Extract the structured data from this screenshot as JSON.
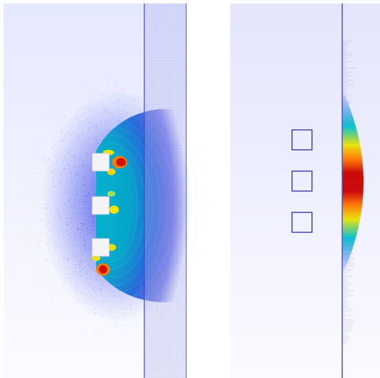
{
  "panels": [
    {
      "name": "particle-field-view",
      "description_colors": {
        "background": "#eef0ff",
        "hot": "#c00000",
        "cool": "#1a2bd0"
      },
      "obstacles": 3,
      "obstacle_color": "#f4f4f8",
      "boundary_color": "#3a3ad0"
    },
    {
      "name": "profile-view",
      "obstacles": 3,
      "obstacle_color": "#4a4ab8",
      "boundary_color": "#5555cc",
      "profile_colors": [
        "#1a2bd0",
        "#00c8c8",
        "#e0e000",
        "#ff7a00",
        "#c00000"
      ]
    }
  ]
}
